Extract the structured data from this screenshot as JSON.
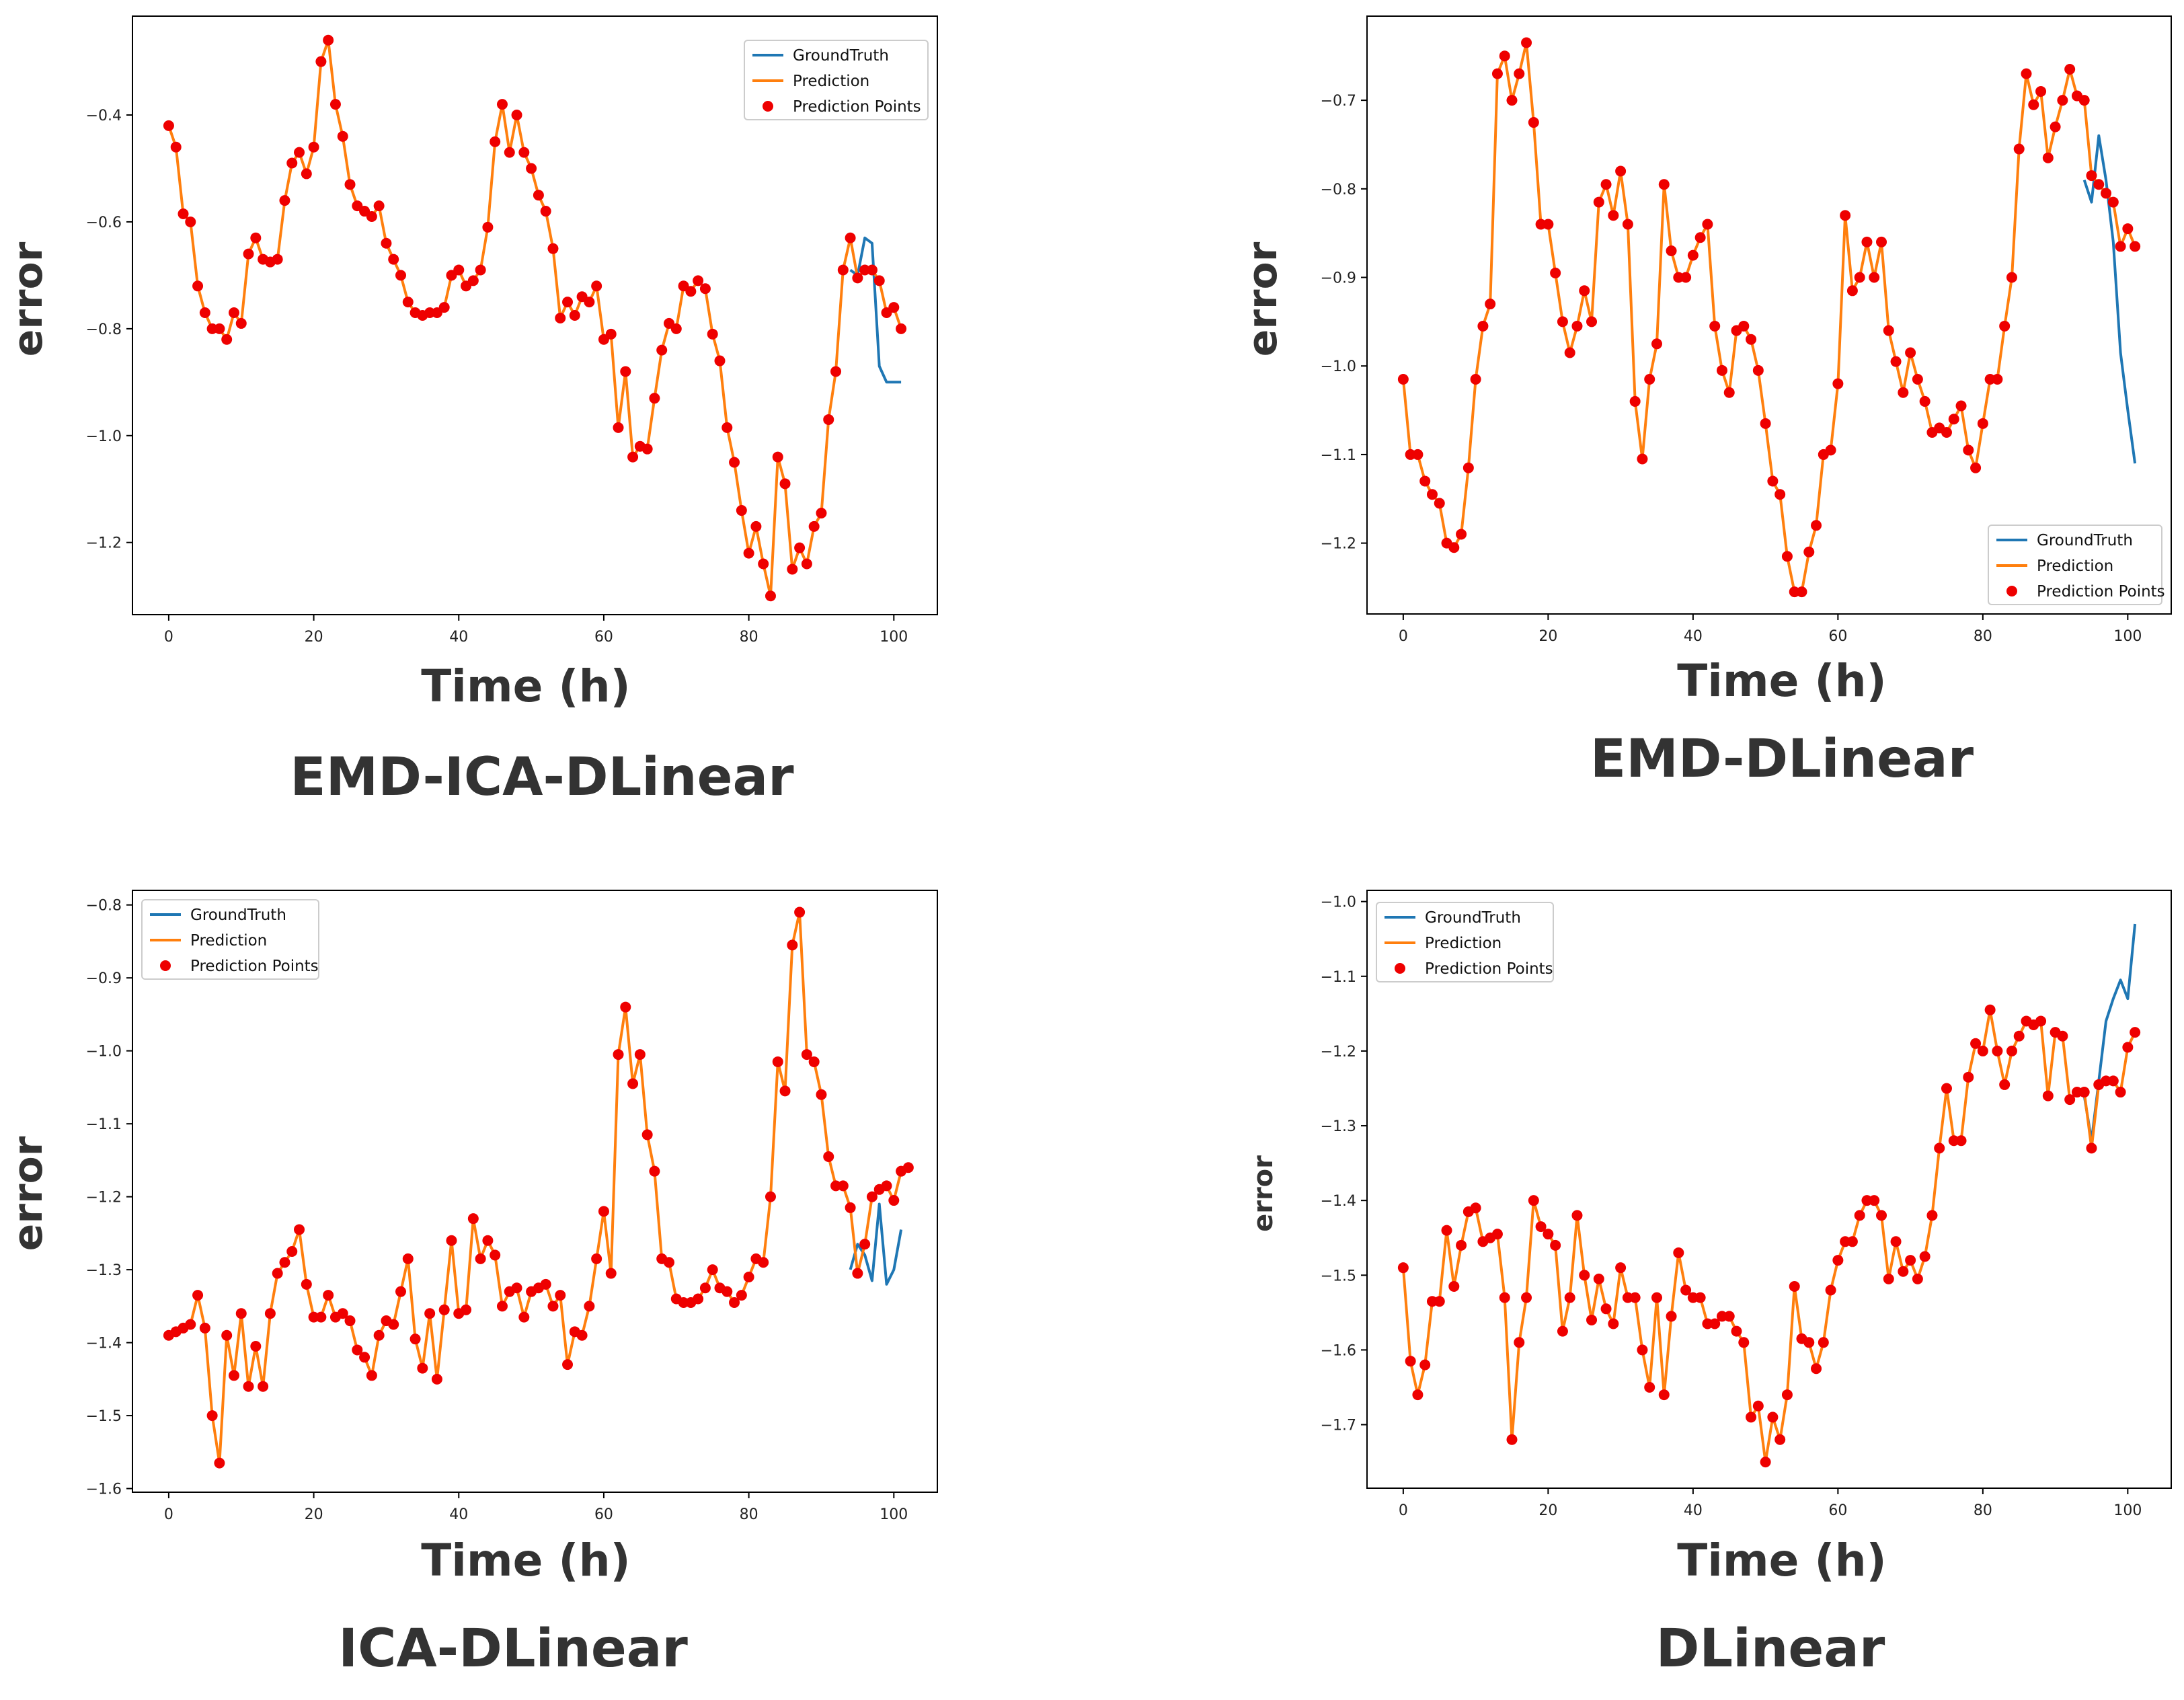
{
  "chart_data": [
    {
      "type": "line",
      "title": "EMD-ICA-DLinear",
      "xlabel": "Time (h)",
      "ylabel": "error",
      "xlim": [
        -5,
        106
      ],
      "ylim": [
        -1.335,
        -0.215
      ],
      "xticks": [
        0,
        20,
        40,
        60,
        80,
        100
      ],
      "xtick_labels": [
        "0",
        "20",
        "40",
        "60",
        "80",
        "100"
      ],
      "yticks": [
        -1.2,
        -1.0,
        -0.8,
        -0.6,
        -0.4
      ],
      "ytick_labels": [
        "−1.2",
        "−1.0",
        "−0.8",
        "−0.6",
        "−0.4"
      ],
      "legend": {
        "location": "top-right",
        "entries": [
          "GroundTruth",
          "Prediction",
          "Prediction Points"
        ]
      },
      "colors": {
        "ground_truth": "#1f77b4",
        "prediction": "#ff7f0e",
        "points": "#ee0000"
      },
      "series": [
        {
          "name": "GroundTruth",
          "x": [
            94,
            95,
            96,
            97,
            98,
            99,
            100,
            101
          ],
          "values": [
            -0.69,
            -0.7,
            -0.63,
            -0.64,
            -0.87,
            -0.9,
            -0.9,
            -0.9
          ]
        },
        {
          "name": "Prediction",
          "x_start": 0,
          "values": [
            -0.42,
            -0.46,
            -0.585,
            -0.6,
            -0.72,
            -0.77,
            -0.8,
            -0.8,
            -0.82,
            -0.77,
            -0.79,
            -0.66,
            -0.63,
            -0.67,
            -0.675,
            -0.67,
            -0.56,
            -0.49,
            -0.47,
            -0.51,
            -0.46,
            -0.3,
            -0.26,
            -0.38,
            -0.44,
            -0.53,
            -0.57,
            -0.58,
            -0.59,
            -0.57,
            -0.64,
            -0.67,
            -0.7,
            -0.75,
            -0.77,
            -0.775,
            -0.77,
            -0.77,
            -0.76,
            -0.7,
            -0.69,
            -0.72,
            -0.71,
            -0.69,
            -0.61,
            -0.45,
            -0.38,
            -0.47,
            -0.4,
            -0.47,
            -0.5,
            -0.55,
            -0.58,
            -0.65,
            -0.78,
            -0.75,
            -0.775,
            -0.74,
            -0.75,
            -0.72,
            -0.82,
            -0.81,
            -0.985,
            -0.88,
            -1.04,
            -1.02,
            -1.025,
            -0.93,
            -0.84,
            -0.79,
            -0.8,
            -0.72,
            -0.73,
            -0.71,
            -0.725,
            -0.81,
            -0.86,
            -0.985,
            -1.05,
            -1.14,
            -1.22,
            -1.17,
            -1.24,
            -1.3,
            -1.04,
            -1.09,
            -1.25,
            -1.21,
            -1.24,
            -1.17,
            -1.145,
            -0.97,
            -0.88,
            -0.69,
            -0.63,
            -0.705,
            -0.69,
            -0.69,
            -0.71,
            -0.77,
            -0.76,
            -0.8
          ]
        }
      ]
    },
    {
      "type": "line",
      "title": "EMD-DLinear",
      "xlabel": "Time (h)",
      "ylabel": "error",
      "xlim": [
        -5,
        106
      ],
      "ylim": [
        -1.28,
        -0.605
      ],
      "xticks": [
        0,
        20,
        40,
        60,
        80,
        100
      ],
      "xtick_labels": [
        "0",
        "20",
        "40",
        "60",
        "80",
        "100"
      ],
      "yticks": [
        -1.2,
        -1.1,
        -1.0,
        -0.9,
        -0.8,
        -0.7
      ],
      "ytick_labels": [
        "−1.2",
        "−1.1",
        "−1.0",
        "−0.9",
        "−0.8",
        "−0.7"
      ],
      "legend": {
        "location": "bottom-right",
        "entries": [
          "GroundTruth",
          "Prediction",
          "Prediction Points"
        ]
      },
      "colors": {
        "ground_truth": "#1f77b4",
        "prediction": "#ff7f0e",
        "points": "#ee0000"
      },
      "series": [
        {
          "name": "GroundTruth",
          "x": [
            94,
            95,
            96,
            97,
            98,
            99,
            100,
            101
          ],
          "values": [
            -0.79,
            -0.815,
            -0.74,
            -0.79,
            -0.86,
            -0.985,
            -1.05,
            -1.11
          ]
        },
        {
          "name": "Prediction",
          "x_start": 0,
          "values": [
            -1.015,
            -1.1,
            -1.1,
            -1.13,
            -1.145,
            -1.155,
            -1.2,
            -1.205,
            -1.19,
            -1.115,
            -1.015,
            -0.955,
            -0.93,
            -0.67,
            -0.65,
            -0.7,
            -0.67,
            -0.635,
            -0.725,
            -0.84,
            -0.84,
            -0.895,
            -0.95,
            -0.985,
            -0.955,
            -0.915,
            -0.95,
            -0.815,
            -0.795,
            -0.83,
            -0.78,
            -0.84,
            -1.04,
            -1.105,
            -1.015,
            -0.975,
            -0.795,
            -0.87,
            -0.9,
            -0.9,
            -0.875,
            -0.855,
            -0.84,
            -0.955,
            -1.005,
            -1.03,
            -0.96,
            -0.955,
            -0.97,
            -1.005,
            -1.065,
            -1.13,
            -1.145,
            -1.215,
            -1.255,
            -1.255,
            -1.21,
            -1.18,
            -1.1,
            -1.095,
            -1.02,
            -0.83,
            -0.915,
            -0.9,
            -0.86,
            -0.9,
            -0.86,
            -0.96,
            -0.995,
            -1.03,
            -0.985,
            -1.015,
            -1.04,
            -1.075,
            -1.07,
            -1.075,
            -1.06,
            -1.045,
            -1.095,
            -1.115,
            -1.065,
            -1.015,
            -1.015,
            -0.955,
            -0.9,
            -0.755,
            -0.67,
            -0.705,
            -0.69,
            -0.765,
            -0.73,
            -0.7,
            -0.665,
            -0.695,
            -0.7,
            -0.785,
            -0.795,
            -0.805,
            -0.815,
            -0.865,
            -0.845,
            -0.865
          ]
        }
      ]
    },
    {
      "type": "line",
      "title": "ICA-DLinear",
      "xlabel": "Time (h)",
      "ylabel": "error",
      "xlim": [
        -5,
        106
      ],
      "ylim": [
        -1.605,
        -0.78
      ],
      "xticks": [
        0,
        20,
        40,
        60,
        80,
        100
      ],
      "xtick_labels": [
        "0",
        "20",
        "40",
        "60",
        "80",
        "100"
      ],
      "yticks": [
        -1.6,
        -1.5,
        -1.4,
        -1.3,
        -1.2,
        -1.1,
        -1.0,
        -0.9,
        -0.8
      ],
      "ytick_labels": [
        "−1.6",
        "−1.5",
        "−1.4",
        "−1.3",
        "−1.2",
        "−1.1",
        "−1.0",
        "−0.9",
        "−0.8"
      ],
      "legend": {
        "location": "top-left",
        "entries": [
          "GroundTruth",
          "Prediction",
          "Prediction Points"
        ]
      },
      "colors": {
        "ground_truth": "#1f77b4",
        "prediction": "#ff7f0e",
        "points": "#ee0000"
      },
      "series": [
        {
          "name": "GroundTruth",
          "x": [
            94,
            95,
            96,
            97,
            98,
            99,
            100,
            101
          ],
          "values": [
            -1.3,
            -1.265,
            -1.28,
            -1.315,
            -1.21,
            -1.32,
            -1.3,
            -1.245
          ]
        },
        {
          "name": "Prediction",
          "x_start": 0,
          "values": [
            -1.39,
            -1.385,
            -1.38,
            -1.375,
            -1.335,
            -1.38,
            -1.5,
            -1.565,
            -1.39,
            -1.445,
            -1.36,
            -1.46,
            -1.405,
            -1.46,
            -1.36,
            -1.305,
            -1.29,
            -1.275,
            -1.245,
            -1.32,
            -1.365,
            -1.365,
            -1.335,
            -1.365,
            -1.36,
            -1.37,
            -1.41,
            -1.42,
            -1.445,
            -1.39,
            -1.37,
            -1.375,
            -1.33,
            -1.285,
            -1.395,
            -1.435,
            -1.36,
            -1.45,
            -1.355,
            -1.26,
            -1.36,
            -1.355,
            -1.23,
            -1.285,
            -1.26,
            -1.28,
            -1.35,
            -1.33,
            -1.325,
            -1.365,
            -1.33,
            -1.325,
            -1.32,
            -1.35,
            -1.335,
            -1.43,
            -1.385,
            -1.39,
            -1.35,
            -1.285,
            -1.22,
            -1.305,
            -1.005,
            -0.94,
            -1.045,
            -1.005,
            -1.115,
            -1.165,
            -1.285,
            -1.29,
            -1.34,
            -1.345,
            -1.345,
            -1.34,
            -1.325,
            -1.3,
            -1.325,
            -1.33,
            -1.345,
            -1.335,
            -1.31,
            -1.285,
            -1.29,
            -1.2,
            -1.015,
            -1.055,
            -0.855,
            -0.81,
            -1.005,
            -1.015,
            -1.06,
            -1.145,
            -1.185,
            -1.185,
            -1.215,
            -1.305,
            -1.265,
            -1.2,
            -1.19,
            -1.185,
            -1.205,
            -1.165,
            -1.16
          ]
        }
      ]
    },
    {
      "type": "line",
      "title": "DLinear",
      "xlabel": "Time (h)",
      "ylabel": "error",
      "xlim": [
        -5,
        106
      ],
      "ylim": [
        -1.785,
        -0.985
      ],
      "xticks": [
        0,
        20,
        40,
        60,
        80,
        100
      ],
      "xtick_labels": [
        "0",
        "20",
        "40",
        "60",
        "80",
        "100"
      ],
      "yticks": [
        -1.7,
        -1.6,
        -1.5,
        -1.4,
        -1.3,
        -1.2,
        -1.1,
        -1.0
      ],
      "ytick_labels": [
        "−1.7",
        "−1.6",
        "−1.5",
        "−1.4",
        "−1.3",
        "−1.2",
        "−1.1",
        "−1.0"
      ],
      "legend": {
        "location": "top-left",
        "entries": [
          "GroundTruth",
          "Prediction",
          "Prediction Points"
        ]
      },
      "colors": {
        "ground_truth": "#1f77b4",
        "prediction": "#ff7f0e",
        "points": "#ee0000"
      },
      "series": [
        {
          "name": "GroundTruth",
          "x": [
            94,
            95,
            96,
            97,
            98,
            99,
            100,
            101
          ],
          "values": [
            -1.26,
            -1.32,
            -1.24,
            -1.16,
            -1.13,
            -1.105,
            -1.13,
            -1.03
          ]
        },
        {
          "name": "Prediction",
          "x_start": 0,
          "values": [
            -1.49,
            -1.615,
            -1.66,
            -1.62,
            -1.535,
            -1.535,
            -1.44,
            -1.515,
            -1.46,
            -1.415,
            -1.41,
            -1.455,
            -1.45,
            -1.445,
            -1.53,
            -1.72,
            -1.59,
            -1.53,
            -1.4,
            -1.435,
            -1.445,
            -1.46,
            -1.575,
            -1.53,
            -1.42,
            -1.5,
            -1.56,
            -1.505,
            -1.545,
            -1.565,
            -1.49,
            -1.53,
            -1.53,
            -1.6,
            -1.65,
            -1.53,
            -1.66,
            -1.555,
            -1.47,
            -1.52,
            -1.53,
            -1.53,
            -1.565,
            -1.565,
            -1.555,
            -1.555,
            -1.575,
            -1.59,
            -1.69,
            -1.675,
            -1.75,
            -1.69,
            -1.72,
            -1.66,
            -1.515,
            -1.585,
            -1.59,
            -1.625,
            -1.59,
            -1.52,
            -1.48,
            -1.455,
            -1.455,
            -1.42,
            -1.4,
            -1.4,
            -1.42,
            -1.505,
            -1.455,
            -1.495,
            -1.48,
            -1.505,
            -1.475,
            -1.42,
            -1.33,
            -1.25,
            -1.32,
            -1.32,
            -1.235,
            -1.19,
            -1.2,
            -1.145,
            -1.2,
            -1.245,
            -1.2,
            -1.18,
            -1.16,
            -1.165,
            -1.16,
            -1.26,
            -1.175,
            -1.18,
            -1.265,
            -1.255,
            -1.255,
            -1.33,
            -1.245,
            -1.24,
            -1.24,
            -1.255,
            -1.195,
            -1.175
          ]
        }
      ]
    }
  ]
}
